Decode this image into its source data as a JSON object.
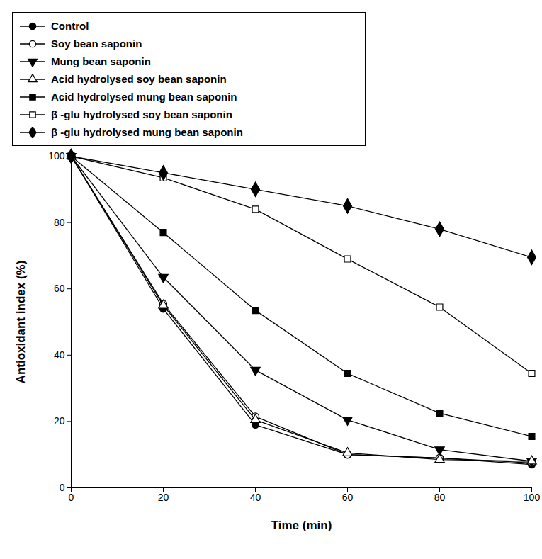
{
  "chart_data": {
    "type": "line",
    "x_label": "Time (min)",
    "y_label": "Antioxidant index (%)",
    "x": [
      0,
      20,
      40,
      60,
      80,
      100
    ],
    "xlim": [
      0,
      100
    ],
    "xticks": [
      0,
      20,
      40,
      60,
      80,
      100
    ],
    "ylim": [
      0,
      100
    ],
    "yticks": [
      0,
      20,
      40,
      60,
      80,
      100
    ],
    "grid": false,
    "legend": "top-left",
    "series": [
      {
        "name": "Control",
        "color": "#000000",
        "marker": "circle",
        "line_style": "solid",
        "values": [
          100,
          54,
          19,
          10,
          9,
          7
        ]
      },
      {
        "name": "Soy bean saponin",
        "color": "#000000",
        "marker": "circle-open",
        "line_style": "solid",
        "values": [
          100,
          55.5,
          21.5,
          10,
          9,
          7.5
        ]
      },
      {
        "name": "Mung bean saponin",
        "color": "#000000",
        "marker": "triangle-down",
        "line_style": "solid",
        "values": [
          100,
          63.5,
          35.5,
          20.5,
          11.5,
          8
        ]
      },
      {
        "name": "Acid hydrolysed soy bean saponin",
        "color": "#000000",
        "marker": "triangle-open",
        "line_style": "solid",
        "values": [
          100,
          55,
          20.5,
          10.5,
          8.5,
          8
        ]
      },
      {
        "name": "Acid hydrolysed mung bean saponin",
        "color": "#000000",
        "marker": "square",
        "line_style": "solid",
        "values": [
          100,
          77,
          53.5,
          34.5,
          22.5,
          15.5
        ]
      },
      {
        "name": "β -glu hydrolysed soy bean saponin",
        "color": "#000000",
        "marker": "square-open",
        "line_style": "solid",
        "values": [
          100,
          93.5,
          84,
          69,
          54.5,
          34.5
        ]
      },
      {
        "name": "β -glu hydrolysed mung bean saponin",
        "color": "#000000",
        "marker": "diamond",
        "line_style": "solid",
        "values": [
          100,
          95,
          90,
          85,
          78,
          69.5
        ]
      }
    ]
  }
}
